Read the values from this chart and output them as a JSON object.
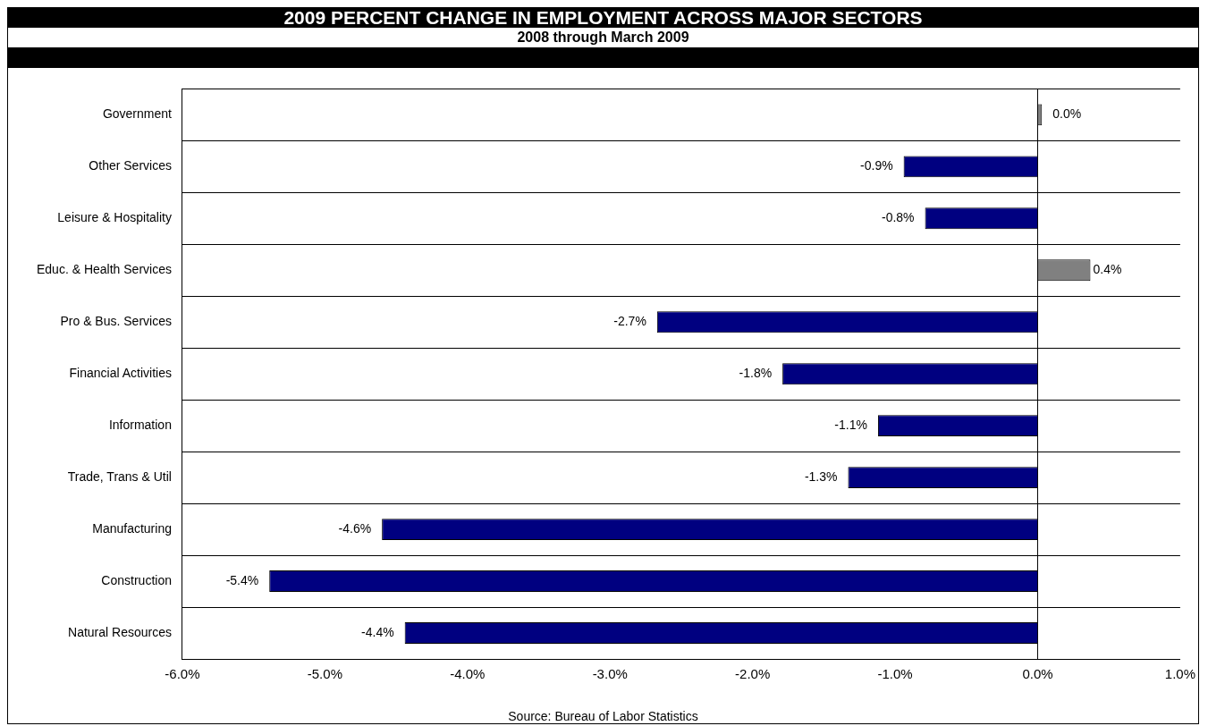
{
  "chart_data": {
    "type": "bar",
    "orientation": "horizontal",
    "title": "2009 PERCENT CHANGE IN EMPLOYMENT ACROSS MAJOR SECTORS",
    "subtitle": "2008 through March 2009",
    "categories": [
      "Government",
      "Other Services",
      "Leisure & Hospitality",
      "Educ. & Health Services",
      "Pro & Bus. Services",
      "Financial Activities",
      "Information",
      "Trade, Trans & Util",
      "Manufacturing",
      "Construction",
      "Natural Resources"
    ],
    "values": [
      0.03,
      -0.94,
      -0.79,
      0.37,
      -2.67,
      -1.79,
      -1.12,
      -1.33,
      -4.6,
      -5.39,
      -4.44
    ],
    "value_labels": [
      "0.0%",
      "-0.9%",
      "-0.8%",
      "0.4%",
      "-2.7%",
      "-1.8%",
      "-1.1%",
      "-1.3%",
      "-4.6%",
      "-5.4%",
      "-4.4%"
    ],
    "colors": [
      "#808080",
      "#000080",
      "#000080",
      "#808080",
      "#000080",
      "#000080",
      "#000080",
      "#000080",
      "#000080",
      "#000080",
      "#000080"
    ],
    "xlim": [
      -6,
      1
    ],
    "xticks": [
      {
        "value": -6,
        "label": "-6.0%"
      },
      {
        "value": -5,
        "label": "-5.0%"
      },
      {
        "value": -4,
        "label": "-4.0%"
      },
      {
        "value": -3,
        "label": "-3.0%"
      },
      {
        "value": -2,
        "label": "-2.0%"
      },
      {
        "value": -1,
        "label": "-1.0%"
      },
      {
        "value": 0,
        "label": "0.0%"
      },
      {
        "value": 1,
        "label": "1.0%"
      }
    ],
    "grid": "y",
    "legend": false,
    "ref_lines": [
      {
        "axis": "x",
        "value": 0,
        "color": "#000000"
      }
    ],
    "annotations": [
      "Source: Bureau of Labor Statistics"
    ]
  }
}
